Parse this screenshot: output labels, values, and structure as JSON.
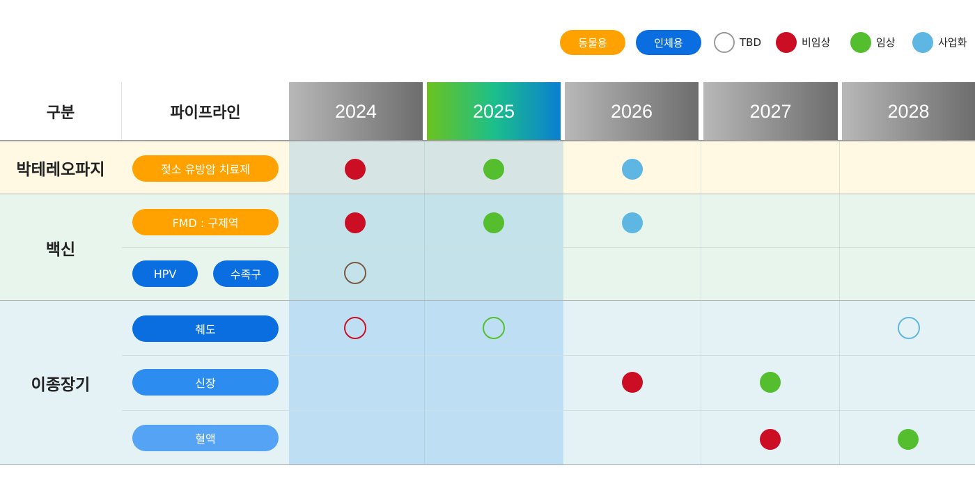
{
  "legend": {
    "animal": "동물용",
    "human": "인체용",
    "tbd": "TBD",
    "preclinical": "비임상",
    "clinical": "임상",
    "commercial": "사업화"
  },
  "header": {
    "category": "구분",
    "pipeline": "파이프라인",
    "years": [
      "2024",
      "2025",
      "2026",
      "2027",
      "2028"
    ],
    "highlight_year": "2025"
  },
  "colors": {
    "animal": "#ffa200",
    "human": "#0a6ee0",
    "organ_kidney": "#2d8cf0",
    "organ_blood": "#55a3f5",
    "preclinical": "#cc0e24",
    "clinical": "#54be2f",
    "commercial": "#5eb6e2",
    "tbd": "#9a9a9a"
  },
  "groups": [
    {
      "category": "박테레오파지",
      "rows": [
        {
          "pipelines": [
            {
              "label": "젖소 유방암 치료제",
              "type": "animal"
            }
          ],
          "marks": [
            {
              "year": "2024",
              "stage": "preclinical"
            },
            {
              "year": "2025",
              "stage": "clinical"
            },
            {
              "year": "2026",
              "stage": "commercial"
            }
          ]
        }
      ]
    },
    {
      "category": "백신",
      "rows": [
        {
          "pipelines": [
            {
              "label": "FMD : 구제역",
              "type": "animal"
            }
          ],
          "marks": [
            {
              "year": "2024",
              "stage": "preclinical"
            },
            {
              "year": "2025",
              "stage": "clinical"
            },
            {
              "year": "2026",
              "stage": "commercial"
            }
          ]
        },
        {
          "pipelines": [
            {
              "label": "HPV",
              "type": "human"
            },
            {
              "label": "수족구",
              "type": "human"
            }
          ],
          "marks": [
            {
              "year": "2024",
              "stage": "tbd"
            }
          ]
        }
      ]
    },
    {
      "category": "이종장기",
      "rows": [
        {
          "pipelines": [
            {
              "label": "췌도",
              "type": "human"
            }
          ],
          "marks": [
            {
              "year": "2024",
              "stage": "preclinical",
              "outline": true
            },
            {
              "year": "2025",
              "stage": "clinical",
              "outline": true
            },
            {
              "year": "2028",
              "stage": "commercial",
              "outline": true
            }
          ]
        },
        {
          "pipelines": [
            {
              "label": "신장",
              "type": "organ_kidney"
            }
          ],
          "marks": [
            {
              "year": "2026",
              "stage": "preclinical"
            },
            {
              "year": "2027",
              "stage": "clinical"
            }
          ]
        },
        {
          "pipelines": [
            {
              "label": "혈액",
              "type": "organ_blood"
            }
          ],
          "marks": [
            {
              "year": "2027",
              "stage": "preclinical"
            },
            {
              "year": "2028",
              "stage": "clinical"
            }
          ]
        }
      ]
    }
  ]
}
